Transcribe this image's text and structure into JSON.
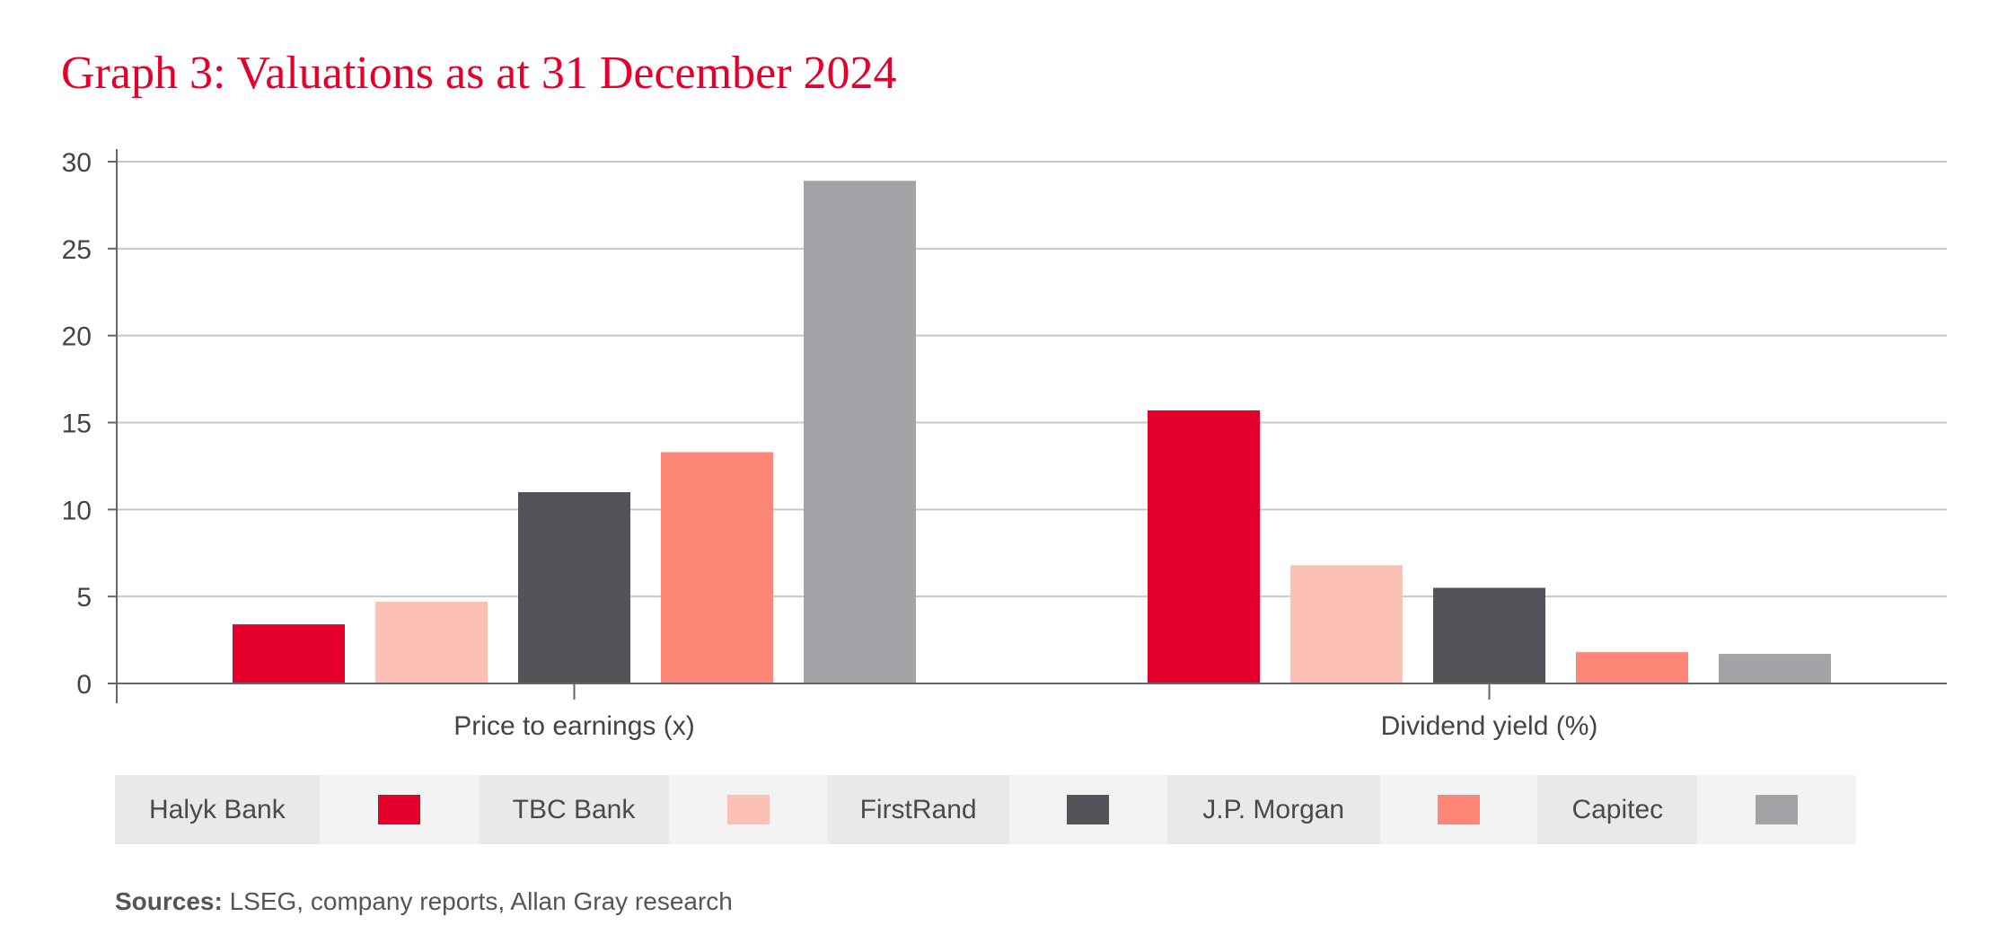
{
  "title": "Graph 3: Valuations as at 31 December 2024",
  "chart_data": {
    "type": "bar",
    "title": "Graph 3: Valuations as at 31 December 2024",
    "categories": [
      "Price to earnings (x)",
      "Dividend yield (%)"
    ],
    "series": [
      {
        "name": "Halyk Bank",
        "color": "#e4002b",
        "values": [
          3.4,
          15.7
        ]
      },
      {
        "name": "TBC Bank",
        "color": "#fcc0b5",
        "values": [
          4.7,
          6.8
        ]
      },
      {
        "name": "FirstRand",
        "color": "#525459",
        "values": [
          11.0,
          5.5
        ]
      },
      {
        "name": "J.P. Morgan",
        "color": "#ff8778",
        "values": [
          13.3,
          1.8
        ]
      },
      {
        "name": "Capitec",
        "color": "#a3a4a8",
        "values": [
          28.9,
          1.7
        ]
      }
    ],
    "ylim": [
      0,
      30
    ],
    "yticks": [
      0,
      5,
      10,
      15,
      20,
      25,
      30
    ],
    "xlabel": "",
    "ylabel": "",
    "grid": true,
    "legend": "bottom"
  },
  "sources": {
    "label": "Sources:",
    "text": " LSEG, company reports, Allan Gray research"
  }
}
